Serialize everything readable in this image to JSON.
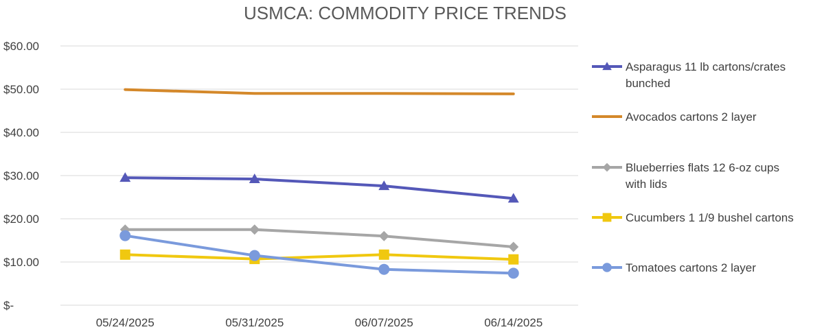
{
  "chart_data": {
    "type": "line",
    "title": "USMCA: COMMODITY PRICE TRENDS",
    "categories": [
      "05/24/2025",
      "05/31/2025",
      "06/07/2025",
      "06/14/2025"
    ],
    "y_tick_labels": [
      "$-",
      "$10.00",
      "$20.00",
      "$30.00",
      "$40.00",
      "$50.00",
      "$60.00"
    ],
    "ylim": [
      0,
      60
    ],
    "y_tick_values": [
      0,
      10,
      20,
      30,
      40,
      50,
      60
    ],
    "grid": true,
    "legend_position": "right",
    "series": [
      {
        "name": "Asparagus 11 lb cartons/crates bunched",
        "legend_lines": [
          "Asparagus 11 lb cartons/crates",
          "bunched"
        ],
        "values": [
          29.5,
          29.2,
          27.6,
          24.7
        ],
        "color": "#5458B8",
        "marker": "triangle"
      },
      {
        "name": "Avocados cartons 2 layer",
        "legend_lines": [
          "Avocados cartons 2 layer"
        ],
        "values": [
          49.9,
          49.0,
          49.0,
          48.9
        ],
        "color": "#D4882A",
        "marker": "none"
      },
      {
        "name": "Blueberries flats 12 6-oz cups with lids",
        "legend_lines": [
          "Blueberries flats 12 6-oz cups",
          "with lids"
        ],
        "values": [
          17.5,
          17.5,
          16.0,
          13.5
        ],
        "color": "#A6A6A6",
        "marker": "diamond"
      },
      {
        "name": "Cucumbers 1 1/9 bushel cartons",
        "legend_lines": [
          "Cucumbers 1 1/9 bushel cartons"
        ],
        "values": [
          11.7,
          10.7,
          11.7,
          10.6
        ],
        "color": "#F0C810",
        "marker": "square"
      },
      {
        "name": "Tomatoes cartons 2 layer",
        "legend_lines": [
          "Tomatoes cartons 2 layer"
        ],
        "values": [
          16.1,
          11.5,
          8.3,
          7.4
        ],
        "color": "#7A9ADC",
        "marker": "circle"
      }
    ]
  }
}
